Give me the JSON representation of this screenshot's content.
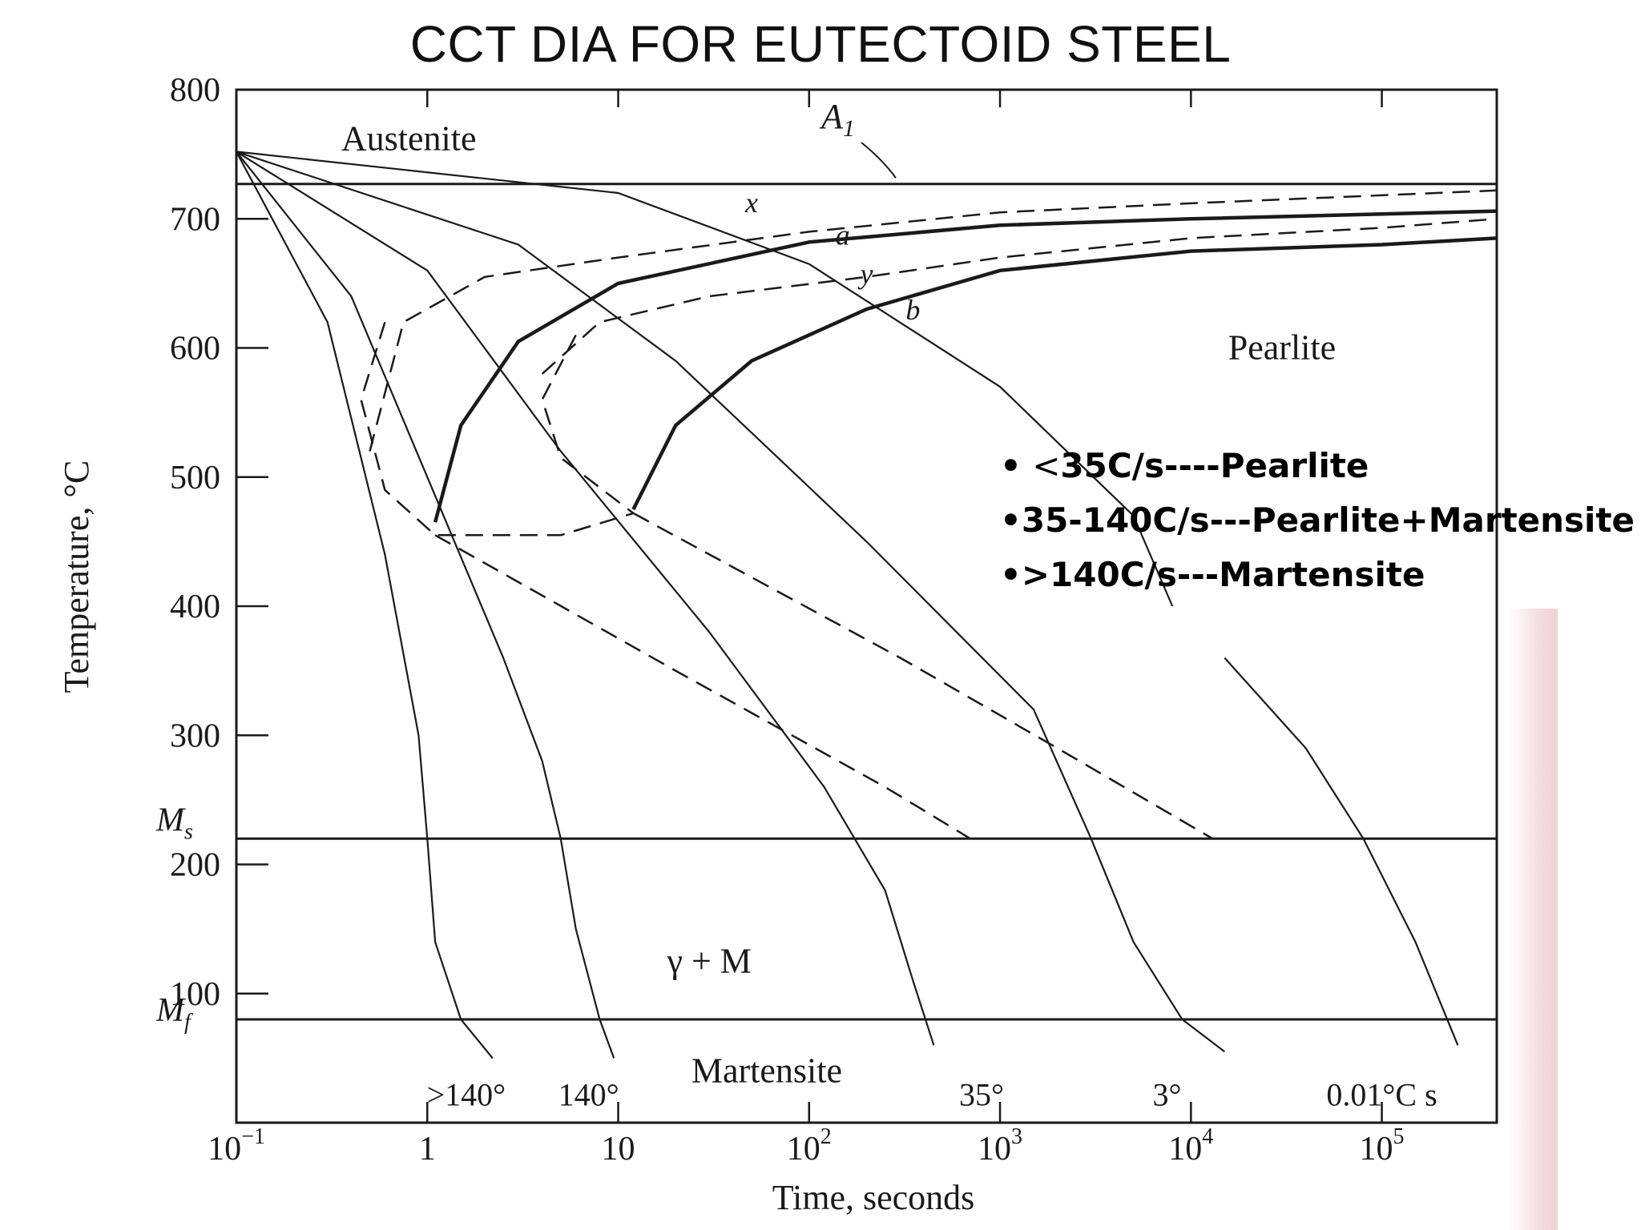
{
  "slide": {
    "title": "CCT DIA  FOR EUTECTOID STEEL"
  },
  "chart_data": {
    "type": "diagram",
    "xlabel": "Time, seconds",
    "ylabel": "Temperature, °C",
    "x_scale": "log",
    "xlim": [
      0.1,
      400000
    ],
    "ylim": [
      0,
      800
    ],
    "x_ticks": [
      {
        "value": 0.1,
        "label": "10",
        "exp": "−1"
      },
      {
        "value": 1,
        "label": "1",
        "exp": ""
      },
      {
        "value": 10,
        "label": "10",
        "exp": ""
      },
      {
        "value": 100,
        "label": "10",
        "exp": "2"
      },
      {
        "value": 1000,
        "label": "10",
        "exp": "3"
      },
      {
        "value": 10000,
        "label": "10",
        "exp": "4"
      },
      {
        "value": 100000,
        "label": "10",
        "exp": "5"
      }
    ],
    "y_ticks": [
      {
        "value": 800,
        "label": "800"
      },
      {
        "value": 700,
        "label": "700"
      },
      {
        "value": 600,
        "label": "600"
      },
      {
        "value": 500,
        "label": "500"
      },
      {
        "value": 400,
        "label": "400"
      },
      {
        "value": 300,
        "label": "300"
      },
      {
        "value": 200,
        "label": "200"
      },
      {
        "value": 100,
        "label": "100"
      }
    ],
    "reference_lines": [
      {
        "name": "A1",
        "label": "A",
        "sub": "1",
        "y": 727
      },
      {
        "name": "Ms",
        "label": "M",
        "sub": "s",
        "y": 220
      },
      {
        "name": "Mf",
        "label": "M",
        "sub": "f",
        "y": 80
      }
    ],
    "regions": [
      {
        "label": "Austenite",
        "x": 0.8,
        "y": 762
      },
      {
        "label": "Pearlite",
        "x": 30000,
        "y": 600
      },
      {
        "label": "γ + M",
        "x": 30,
        "y": 125
      },
      {
        "label": "Martensite",
        "x": 60,
        "y": 40
      }
    ],
    "point_labels": [
      {
        "label": "x",
        "x": 50,
        "y": 705
      },
      {
        "label": "a",
        "x": 150,
        "y": 680
      },
      {
        "label": "y",
        "x": 200,
        "y": 650
      },
      {
        "label": "b",
        "x": 350,
        "y": 622
      }
    ],
    "cooling_curves": [
      {
        "label": ">140°",
        "label_x": 1.6,
        "label_y": 22,
        "points": [
          [
            0.1,
            752
          ],
          [
            0.3,
            620
          ],
          [
            0.6,
            440
          ],
          [
            0.9,
            300
          ],
          [
            1.0,
            220
          ],
          [
            1.1,
            140
          ],
          [
            1.5,
            80
          ],
          [
            2.2,
            50
          ]
        ]
      },
      {
        "label": "140°",
        "label_x": 7,
        "label_y": 22,
        "points": [
          [
            0.1,
            752
          ],
          [
            0.4,
            640
          ],
          [
            1.0,
            500
          ],
          [
            2.5,
            360
          ],
          [
            4.0,
            280
          ],
          [
            5.0,
            220
          ],
          [
            6.0,
            150
          ],
          [
            8.0,
            80
          ],
          [
            9.5,
            50
          ]
        ]
      },
      {
        "label": "",
        "label_x": 0,
        "label_y": 0,
        "points": [
          [
            0.1,
            752
          ],
          [
            1.0,
            660
          ],
          [
            5.0,
            520
          ],
          [
            30,
            380
          ],
          [
            120,
            260
          ],
          [
            250,
            180
          ],
          [
            350,
            110
          ],
          [
            450,
            60
          ]
        ]
      },
      {
        "label": "35°",
        "label_x": 800,
        "label_y": 22,
        "points": [
          [
            0.1,
            752
          ],
          [
            3.0,
            680
          ],
          [
            20,
            590
          ],
          [
            200,
            450
          ],
          [
            1500,
            320
          ],
          [
            3000,
            220
          ],
          [
            5000,
            140
          ],
          [
            9000,
            80
          ],
          [
            15000,
            55
          ]
        ]
      },
      {
        "label": "3°",
        "label_x": 7500,
        "label_y": 22,
        "points": [
          [
            0.1,
            752
          ],
          [
            10,
            720
          ],
          [
            100,
            665
          ],
          [
            1000,
            570
          ],
          [
            5000,
            470
          ],
          [
            8000,
            400
          ]
        ]
      },
      {
        "label": "0.01°C s",
        "label_x": 100000,
        "label_y": 22,
        "points": [
          [
            15000,
            360
          ],
          [
            40000,
            290
          ],
          [
            80000,
            220
          ],
          [
            150000,
            140
          ],
          [
            250000,
            60
          ]
        ]
      }
    ],
    "transformation_curves": [
      {
        "name": "start (solid)",
        "style": "solid",
        "points": [
          [
            1.1,
            465
          ],
          [
            1.5,
            540
          ],
          [
            3,
            605
          ],
          [
            10,
            650
          ],
          [
            100,
            682
          ],
          [
            1000,
            695
          ],
          [
            10000,
            700
          ],
          [
            400000,
            706
          ]
        ]
      },
      {
        "name": "finish (solid)",
        "style": "solid",
        "points": [
          [
            12,
            475
          ],
          [
            20,
            540
          ],
          [
            50,
            590
          ],
          [
            200,
            630
          ],
          [
            1000,
            660
          ],
          [
            10000,
            675
          ],
          [
            100000,
            680
          ],
          [
            400000,
            685
          ]
        ]
      },
      {
        "name": "start (dashed)",
        "style": "dashed",
        "points": [
          [
            0.5,
            520
          ],
          [
            0.75,
            620
          ],
          [
            2,
            655
          ],
          [
            10,
            670
          ],
          [
            100,
            690
          ],
          [
            1000,
            705
          ],
          [
            10000,
            712
          ],
          [
            400000,
            722
          ]
        ]
      },
      {
        "name": "finish (dashed)",
        "style": "dashed",
        "points": [
          [
            4,
            580
          ],
          [
            8,
            620
          ],
          [
            30,
            640
          ],
          [
            200,
            655
          ],
          [
            1000,
            670
          ],
          [
            10000,
            685
          ],
          [
            100000,
            693
          ],
          [
            400000,
            700
          ]
        ]
      },
      {
        "name": "bay (dashed)",
        "style": "dashed",
        "points": [
          [
            0.6,
            620
          ],
          [
            0.45,
            560
          ],
          [
            0.6,
            490
          ],
          [
            1.1,
            455
          ],
          [
            5,
            455
          ],
          [
            12,
            472
          ]
        ]
      },
      {
        "name": "bay2 (dashed)",
        "style": "dashed",
        "points": [
          [
            6,
            610
          ],
          [
            4,
            560
          ],
          [
            5,
            515
          ],
          [
            12,
            472
          ]
        ]
      },
      {
        "name": "finish line (dashed)",
        "style": "dashed",
        "points": [
          [
            1.1,
            455
          ],
          [
            20,
            350
          ],
          [
            250,
            260
          ],
          [
            700,
            220
          ]
        ]
      },
      {
        "name": "finish line 2 (dashed)",
        "style": "dashed",
        "points": [
          [
            12,
            472
          ],
          [
            300,
            360
          ],
          [
            2000,
            290
          ],
          [
            13000,
            220
          ]
        ]
      }
    ],
    "tick_mark_times": [
      0.1,
      1,
      10,
      100,
      1000,
      10000,
      100000
    ]
  },
  "notes": [
    {
      "bullet": "•",
      "lt": " <",
      "text": "35C/s----Pearlite"
    },
    {
      "bullet": "•",
      "lt": "",
      "text": "35-140C/s---Pearlite+Martensite"
    },
    {
      "bullet": "•",
      "lt": "",
      "text": ">140C/s---Martensite"
    }
  ],
  "colors": {
    "ink": "#1a1a1a",
    "title": "#111111",
    "background": "#ffffff",
    "edge_tint": "#efd3d8"
  }
}
